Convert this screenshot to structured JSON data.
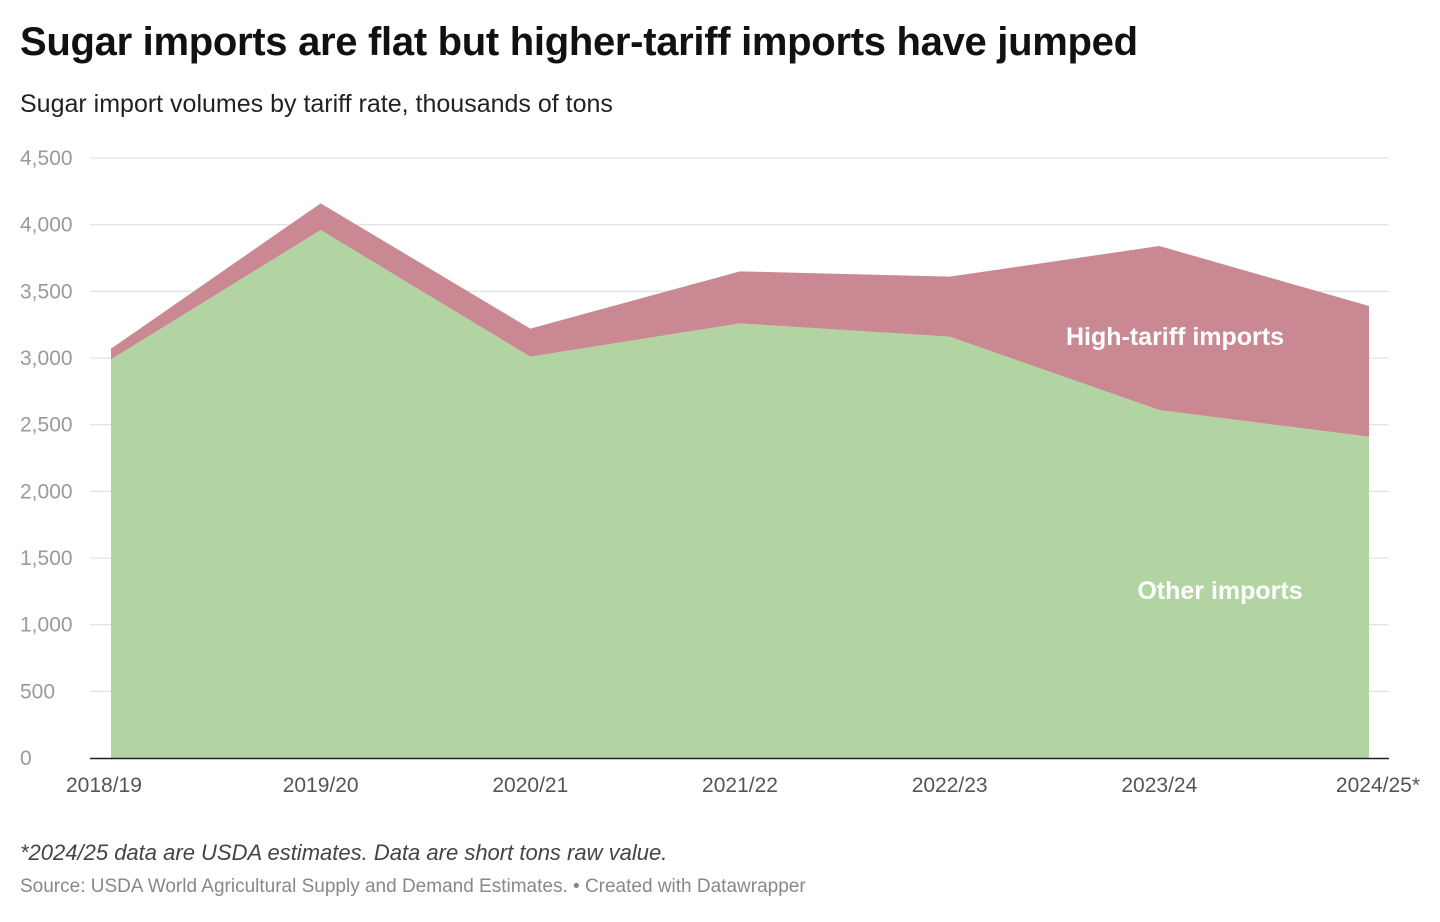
{
  "title": "Sugar imports are flat but higher-tariff imports have jumped",
  "subtitle": "Sugar import volumes by tariff rate, thousands of tons",
  "notes": "*2024/25 data are USDA estimates. Data are short tons raw value.",
  "source": "Source: USDA World Agricultural Supply and Demand Estimates. • Created with Datawrapper",
  "colors": {
    "other": "#b2d4a3",
    "high_tariff": "#c98892",
    "grid": "#e4e4e4",
    "axis": "#222222"
  },
  "chart_data": {
    "type": "area",
    "stacked": true,
    "categories": [
      "2018/19",
      "2019/20",
      "2020/21",
      "2021/22",
      "2022/23",
      "2023/24",
      "2024/25*"
    ],
    "series": [
      {
        "name": "Other imports",
        "values": [
          2990,
          3960,
          3010,
          3260,
          3160,
          2610,
          2410
        ]
      },
      {
        "name": "High-tariff imports",
        "values": [
          80,
          200,
          210,
          390,
          450,
          1230,
          980
        ]
      }
    ],
    "ylim": [
      0,
      4500
    ],
    "yticks": [
      0,
      500,
      1000,
      1500,
      2000,
      2500,
      3000,
      3500,
      4000,
      4500
    ],
    "ytick_labels": [
      "0",
      "500",
      "1,000",
      "1,500",
      "2,000",
      "2,500",
      "3,000",
      "3,500",
      "4,000",
      "4,500"
    ],
    "xlabel": "",
    "ylabel": "",
    "grid": true,
    "legend": "inline labels"
  }
}
